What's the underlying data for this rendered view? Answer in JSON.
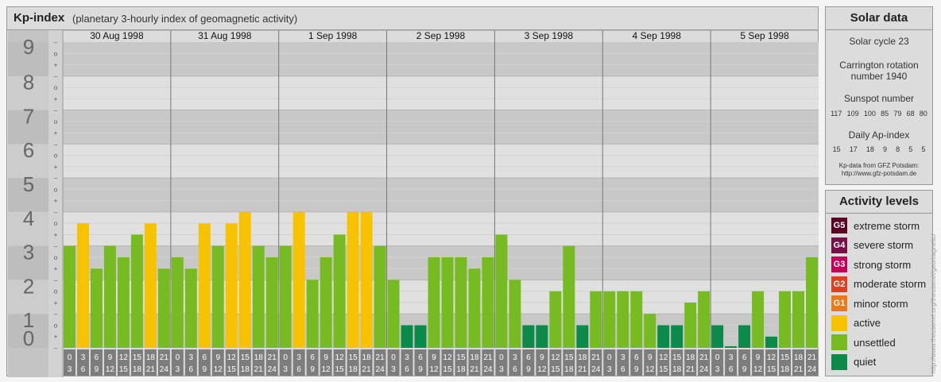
{
  "header": {
    "title": "Kp-index",
    "subtitle": "(planetary 3-hourly index of geomagnetic activity)"
  },
  "chart_data": {
    "type": "bar",
    "ylim": [
      0,
      9
    ],
    "y_ticks": [
      "0",
      "1",
      "2",
      "3",
      "4",
      "5",
      "6",
      "7",
      "8",
      "9"
    ],
    "sub_ticks": [
      "–",
      "+",
      "o"
    ],
    "days": [
      "30 Aug 1998",
      "31 Aug 1998",
      "1 Sep 1998",
      "2 Sep 1998",
      "3 Sep 1998",
      "4 Sep 1998",
      "5 Sep 1998"
    ],
    "interval_start": [
      "0",
      "3",
      "6",
      "9",
      "12",
      "15",
      "18",
      "21"
    ],
    "interval_end": [
      "3",
      "6",
      "9",
      "12",
      "15",
      "18",
      "21",
      "24"
    ],
    "values": [
      [
        3,
        3.667,
        2.333,
        3,
        2.667,
        3.333,
        3.667,
        2.333
      ],
      [
        2.667,
        2.333,
        3.667,
        3,
        3.667,
        4,
        3,
        2.667
      ],
      [
        3,
        4,
        2,
        2.667,
        3.333,
        4,
        4,
        3
      ],
      [
        2,
        0.667,
        0.667,
        2.667,
        2.667,
        2.667,
        2.333,
        2.667
      ],
      [
        3.333,
        2,
        0.667,
        0.667,
        1.667,
        3,
        0.667,
        1.667
      ],
      [
        1.667,
        1.667,
        1.667,
        1,
        0.667,
        0.667,
        1.333,
        1.667
      ],
      [
        0.667,
        0,
        0.667,
        1.667,
        0.333,
        1.667,
        1.667,
        2.667
      ]
    ],
    "colors": {
      "quiet": "#0b8a4a",
      "unsettled": "#77bb22",
      "active": "#f7c300"
    }
  },
  "solar": {
    "title": "Solar data",
    "cycle": "Solar cycle 23",
    "carrington_1": "Carrington rotation",
    "carrington_2": "number 1940",
    "sunspot_label": "Sunspot number",
    "sunspot_values": [
      "117",
      "109",
      "100",
      "85",
      "79",
      "68",
      "80"
    ],
    "ap_label": "Daily Ap-index",
    "ap_values": [
      "15",
      "17",
      "18",
      "9",
      "8",
      "5",
      "5"
    ],
    "source_1": "Kp-data from GFZ Potsdam:",
    "source_2": "http://www.gfz-potsdam.de"
  },
  "levels": {
    "title": "Activity levels",
    "items": [
      {
        "badge": "G5",
        "label": "extreme storm",
        "color": "#5a0024"
      },
      {
        "badge": "G4",
        "label": "severe storm",
        "color": "#7a0e48"
      },
      {
        "badge": "G3",
        "label": "strong storm",
        "color": "#c4005a"
      },
      {
        "badge": "G2",
        "label": "moderate storm",
        "color": "#e0401e"
      },
      {
        "badge": "G1",
        "label": "minor storm",
        "color": "#e87a1a"
      },
      {
        "badge": "",
        "label": "active",
        "color": "#f7c300"
      },
      {
        "badge": "",
        "label": "unsettled",
        "color": "#77bb22"
      },
      {
        "badge": "",
        "label": "quiet",
        "color": "#0b8a4a"
      }
    ]
  },
  "footer": {
    "vertical_text": "http://www.theusenet.org/theusenet/geomagnetic/"
  }
}
